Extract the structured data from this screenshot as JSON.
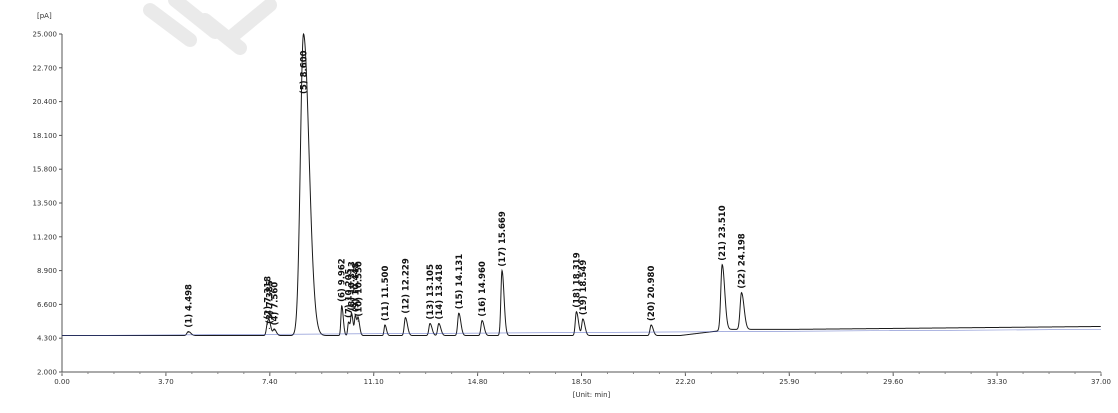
{
  "chart_data": {
    "type": "line",
    "title": "",
    "ylabel": "[pA]",
    "xlabel": "[Unit: min]",
    "xlim": [
      0,
      37
    ],
    "ylim": [
      2000,
      25000
    ],
    "x_ticks": [
      "0.00",
      "3.70",
      "7.40",
      "11.10",
      "14.80",
      "18.50",
      "22.20",
      "25.90",
      "29.60",
      "33.30",
      "37.00"
    ],
    "y_ticks": [
      "2.000",
      "4.300",
      "6.600",
      "8.900",
      "11.200",
      "13.500",
      "15.800",
      "18.100",
      "20.400",
      "22.700",
      "25.000"
    ],
    "grid": false,
    "baseline_pA": 4480,
    "peaks": [
      {
        "label": "(1) 4.498",
        "rt": 4.498,
        "height": 4750,
        "width": 0.05
      },
      {
        "label": "(2) 7.318",
        "rt": 7.318,
        "height": 5300,
        "width": 0.04
      },
      {
        "label": "(3) 7.385",
        "rt": 7.385,
        "height": 5000,
        "width": 0.04
      },
      {
        "label": "(4) 7.560",
        "rt": 7.56,
        "height": 4900,
        "width": 0.04
      },
      {
        "label": "(5) 8.600",
        "rt": 8.6,
        "height": 25000,
        "width": 0.11
      },
      {
        "label": "(6) 9.962",
        "rt": 9.962,
        "height": 6500,
        "width": 0.03
      },
      {
        "label": "(7) 10.205",
        "rt": 10.205,
        "height": 5400,
        "width": 0.03
      },
      {
        "label": "(8) 10.313",
        "rt": 10.313,
        "height": 5900,
        "width": 0.03
      },
      {
        "label": "(9) 10.448",
        "rt": 10.448,
        "height": 5800,
        "width": 0.03
      },
      {
        "label": "(10) 10.550",
        "rt": 10.55,
        "height": 5500,
        "width": 0.03
      },
      {
        "label": "(11) 11.500",
        "rt": 11.5,
        "height": 5200,
        "width": 0.03
      },
      {
        "label": "(12) 12.229",
        "rt": 12.229,
        "height": 5700,
        "width": 0.04
      },
      {
        "label": "(13) 13.105",
        "rt": 13.105,
        "height": 5300,
        "width": 0.04
      },
      {
        "label": "(14) 13.418",
        "rt": 13.418,
        "height": 5300,
        "width": 0.04
      },
      {
        "label": "(15) 14.131",
        "rt": 14.131,
        "height": 6000,
        "width": 0.04
      },
      {
        "label": "(16) 14.960",
        "rt": 14.96,
        "height": 5500,
        "width": 0.04
      },
      {
        "label": "(17) 15.669",
        "rt": 15.669,
        "height": 8900,
        "width": 0.04
      },
      {
        "label": "(18) 18.319",
        "rt": 18.319,
        "height": 6100,
        "width": 0.04
      },
      {
        "label": "(19) 18.549",
        "rt": 18.549,
        "height": 5600,
        "width": 0.04
      },
      {
        "label": "(20) 20.980",
        "rt": 20.98,
        "height": 5200,
        "width": 0.04
      },
      {
        "label": "(21) 23.510",
        "rt": 23.51,
        "height": 9300,
        "width": 0.05
      },
      {
        "label": "(22) 24.198",
        "rt": 24.198,
        "height": 7400,
        "width": 0.05
      }
    ]
  }
}
